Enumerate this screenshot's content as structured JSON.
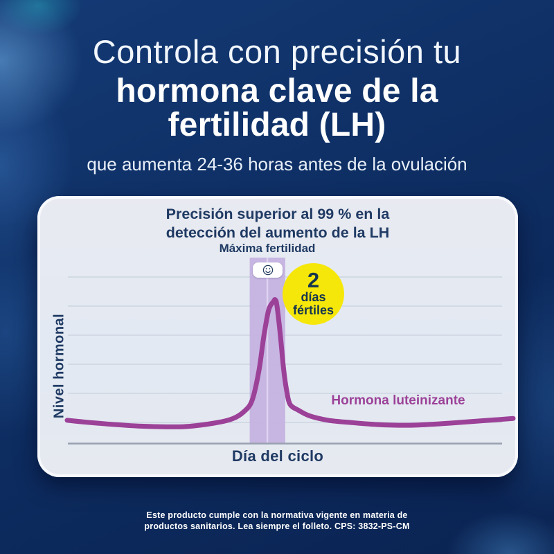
{
  "header": {
    "title_line1": "Controla con precisión tu",
    "title_line2": "hormona clave de la",
    "title_line3": "fertilidad (LH)",
    "subtitle": "que aumenta 24-36 horas antes de la ovulación"
  },
  "card": {
    "title_line1": "Precisión superior al 99 % en la",
    "title_line2": "detección del aumento de la LH",
    "max_fertility_label": "Máxima fertilidad",
    "badge": {
      "number": "2",
      "word1": "días",
      "word2": "fértiles"
    },
    "series_label": "Hormona luteinizante",
    "ylabel": "Nivel hormonal",
    "xlabel": "Día del ciclo"
  },
  "footer": {
    "line1": "Este producto cumple con la normativa vigente en materia de",
    "line2": "productos sanitarios. Lea siempre el folleto. CPS: 3832-PS-CM"
  },
  "colors": {
    "background_navy": "#0e2e63",
    "text_navy": "#1f3a63",
    "curve_purple": "#9c4198",
    "band_purple": "#c5b2e0",
    "band_divider": "#ddd3f0",
    "badge_yellow": "#f6e70a",
    "badge_text": "#16364e",
    "gridline": "#ccd5e1",
    "axis": "#98a1b0",
    "card_background": "#e5e9f1"
  },
  "chart_data": {
    "type": "line",
    "title": "Precisión superior al 99 % en la detección del aumento de la LH",
    "xlabel": "Día del ciclo",
    "ylabel": "Nivel hormonal",
    "x_range": [
      1,
      28
    ],
    "y_range": [
      0,
      1.1
    ],
    "grid": "horizontal",
    "gridline_count": 6,
    "axis_tick_labels": "none (qualitative axes)",
    "legend_position": "inline right of curve",
    "series": [
      {
        "name": "Hormona luteinizante",
        "color": "#9c4198",
        "points": [
          [
            1.0,
            0.16
          ],
          [
            2.8,
            0.14
          ],
          [
            5.3,
            0.12
          ],
          [
            8.0,
            0.115
          ],
          [
            9.9,
            0.14
          ],
          [
            11.0,
            0.17
          ],
          [
            11.7,
            0.22
          ],
          [
            12.2,
            0.3
          ],
          [
            12.6,
            0.5
          ],
          [
            12.9,
            0.74
          ],
          [
            13.2,
            0.93
          ],
          [
            13.5,
            0.99
          ],
          [
            13.6,
            1.0
          ],
          [
            13.7,
            0.96
          ],
          [
            13.9,
            0.76
          ],
          [
            14.1,
            0.52
          ],
          [
            14.3,
            0.36
          ],
          [
            14.5,
            0.27
          ],
          [
            15.0,
            0.23
          ],
          [
            15.7,
            0.19
          ],
          [
            16.8,
            0.16
          ],
          [
            18.1,
            0.145
          ],
          [
            19.8,
            0.13
          ],
          [
            21.7,
            0.125
          ],
          [
            23.5,
            0.135
          ],
          [
            25.4,
            0.15
          ],
          [
            26.9,
            0.163
          ],
          [
            28.0,
            0.173
          ]
        ]
      }
    ],
    "annotations": [
      {
        "type": "band",
        "label": "Máxima fertilidad",
        "x_from": 12.05,
        "x_to": 14.2,
        "divider_at": 13.12,
        "color": "#c5b2e0",
        "divider_color": "#ddd3f0",
        "meaning": "2 fertile days around LH peak (day ~14)"
      },
      {
        "type": "badge",
        "text": "2 días fértiles",
        "color": "#f6e70a"
      },
      {
        "type": "icon",
        "name": "smiley",
        "position": "top of fertile band"
      }
    ]
  }
}
